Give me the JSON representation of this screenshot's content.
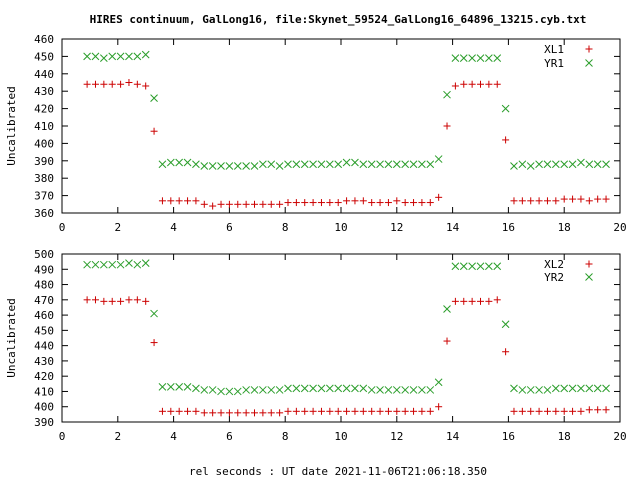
{
  "title": "HIRES continuum, GalLong16, file:Skynet_59524_GalLong16_64896_13215.cyb.txt",
  "xlabel": "rel seconds : UT date 2021-11-06T21:06:18.350",
  "colors": {
    "xl": "#cc0000",
    "yr": "#2a9d2a",
    "axis": "#000000"
  },
  "chart_data": [
    {
      "type": "scatter",
      "ylabel": "Uncalibrated",
      "xlim": [
        0,
        20
      ],
      "ylim": [
        360,
        460
      ],
      "xticks": [
        0,
        2,
        4,
        6,
        8,
        10,
        12,
        14,
        16,
        18,
        20
      ],
      "yticks": [
        360,
        370,
        380,
        390,
        400,
        410,
        420,
        430,
        440,
        450,
        460
      ],
      "legend_position": "top-right",
      "series": [
        {
          "name": "XL1",
          "marker": "plus",
          "color_key": "xl",
          "x": [
            0.9,
            1.2,
            1.5,
            1.8,
            2.1,
            2.4,
            2.7,
            3.0,
            3.3,
            3.6,
            3.9,
            4.2,
            4.5,
            4.8,
            5.1,
            5.4,
            5.7,
            6.0,
            6.3,
            6.6,
            6.9,
            7.2,
            7.5,
            7.8,
            8.1,
            8.4,
            8.7,
            9.0,
            9.3,
            9.6,
            9.9,
            10.2,
            10.5,
            10.8,
            11.1,
            11.4,
            11.7,
            12.0,
            12.3,
            12.6,
            12.9,
            13.2,
            13.5,
            13.8,
            14.1,
            14.4,
            14.7,
            15.0,
            15.3,
            15.6,
            15.9,
            16.2,
            16.5,
            16.8,
            17.1,
            17.4,
            17.7,
            18.0,
            18.3,
            18.6,
            18.9,
            19.2,
            19.5
          ],
          "y": [
            434,
            434,
            434,
            434,
            434,
            435,
            434,
            433,
            407,
            367,
            367,
            367,
            367,
            367,
            365,
            364,
            365,
            365,
            365,
            365,
            365,
            365,
            365,
            365,
            366,
            366,
            366,
            366,
            366,
            366,
            366,
            367,
            367,
            367,
            366,
            366,
            366,
            367,
            366,
            366,
            366,
            366,
            369,
            410,
            433,
            434,
            434,
            434,
            434,
            434,
            402,
            367,
            367,
            367,
            367,
            367,
            367,
            368,
            368,
            368,
            367,
            368,
            368
          ]
        },
        {
          "name": "YR1",
          "marker": "cross",
          "color_key": "yr",
          "x": [
            0.9,
            1.2,
            1.5,
            1.8,
            2.1,
            2.4,
            2.7,
            3.0,
            3.3,
            3.6,
            3.9,
            4.2,
            4.5,
            4.8,
            5.1,
            5.4,
            5.7,
            6.0,
            6.3,
            6.6,
            6.9,
            7.2,
            7.5,
            7.8,
            8.1,
            8.4,
            8.7,
            9.0,
            9.3,
            9.6,
            9.9,
            10.2,
            10.5,
            10.8,
            11.1,
            11.4,
            11.7,
            12.0,
            12.3,
            12.6,
            12.9,
            13.2,
            13.5,
            13.8,
            14.1,
            14.4,
            14.7,
            15.0,
            15.3,
            15.6,
            15.9,
            16.2,
            16.5,
            16.8,
            17.1,
            17.4,
            17.7,
            18.0,
            18.3,
            18.6,
            18.9,
            19.2,
            19.5
          ],
          "y": [
            450,
            450,
            449,
            450,
            450,
            450,
            450,
            451,
            426,
            388,
            389,
            389,
            389,
            388,
            387,
            387,
            387,
            387,
            387,
            387,
            387,
            388,
            388,
            387,
            388,
            388,
            388,
            388,
            388,
            388,
            388,
            389,
            389,
            388,
            388,
            388,
            388,
            388,
            388,
            388,
            388,
            388,
            391,
            428,
            449,
            449,
            449,
            449,
            449,
            449,
            420,
            387,
            388,
            387,
            388,
            388,
            388,
            388,
            388,
            389,
            388,
            388,
            388
          ]
        }
      ]
    },
    {
      "type": "scatter",
      "ylabel": "Uncalibrated",
      "xlim": [
        0,
        20
      ],
      "ylim": [
        390,
        500
      ],
      "xticks": [
        0,
        2,
        4,
        6,
        8,
        10,
        12,
        14,
        16,
        18,
        20
      ],
      "yticks": [
        390,
        400,
        410,
        420,
        430,
        440,
        450,
        460,
        470,
        480,
        490,
        500
      ],
      "legend_position": "top-right",
      "series": [
        {
          "name": "XL2",
          "marker": "plus",
          "color_key": "xl",
          "x": [
            0.9,
            1.2,
            1.5,
            1.8,
            2.1,
            2.4,
            2.7,
            3.0,
            3.3,
            3.6,
            3.9,
            4.2,
            4.5,
            4.8,
            5.1,
            5.4,
            5.7,
            6.0,
            6.3,
            6.6,
            6.9,
            7.2,
            7.5,
            7.8,
            8.1,
            8.4,
            8.7,
            9.0,
            9.3,
            9.6,
            9.9,
            10.2,
            10.5,
            10.8,
            11.1,
            11.4,
            11.7,
            12.0,
            12.3,
            12.6,
            12.9,
            13.2,
            13.5,
            13.8,
            14.1,
            14.4,
            14.7,
            15.0,
            15.3,
            15.6,
            15.9,
            16.2,
            16.5,
            16.8,
            17.1,
            17.4,
            17.7,
            18.0,
            18.3,
            18.6,
            18.9,
            19.2,
            19.5
          ],
          "y": [
            470,
            470,
            469,
            469,
            469,
            470,
            470,
            469,
            442,
            397,
            397,
            397,
            397,
            397,
            396,
            396,
            396,
            396,
            396,
            396,
            396,
            396,
            396,
            396,
            397,
            397,
            397,
            397,
            397,
            397,
            397,
            397,
            397,
            397,
            397,
            397,
            397,
            397,
            397,
            397,
            397,
            397,
            400,
            443,
            469,
            469,
            469,
            469,
            469,
            470,
            436,
            397,
            397,
            397,
            397,
            397,
            397,
            397,
            397,
            397,
            398,
            398,
            398
          ]
        },
        {
          "name": "YR2",
          "marker": "cross",
          "color_key": "yr",
          "x": [
            0.9,
            1.2,
            1.5,
            1.8,
            2.1,
            2.4,
            2.7,
            3.0,
            3.3,
            3.6,
            3.9,
            4.2,
            4.5,
            4.8,
            5.1,
            5.4,
            5.7,
            6.0,
            6.3,
            6.6,
            6.9,
            7.2,
            7.5,
            7.8,
            8.1,
            8.4,
            8.7,
            9.0,
            9.3,
            9.6,
            9.9,
            10.2,
            10.5,
            10.8,
            11.1,
            11.4,
            11.7,
            12.0,
            12.3,
            12.6,
            12.9,
            13.2,
            13.5,
            13.8,
            14.1,
            14.4,
            14.7,
            15.0,
            15.3,
            15.6,
            15.9,
            16.2,
            16.5,
            16.8,
            17.1,
            17.4,
            17.7,
            18.0,
            18.3,
            18.6,
            18.9,
            19.2,
            19.5
          ],
          "y": [
            493,
            493,
            493,
            493,
            493,
            494,
            493,
            494,
            461,
            413,
            413,
            413,
            413,
            412,
            411,
            411,
            410,
            410,
            410,
            411,
            411,
            411,
            411,
            411,
            412,
            412,
            412,
            412,
            412,
            412,
            412,
            412,
            412,
            412,
            411,
            411,
            411,
            411,
            411,
            411,
            411,
            411,
            416,
            464,
            492,
            492,
            492,
            492,
            492,
            492,
            454,
            412,
            411,
            411,
            411,
            411,
            412,
            412,
            412,
            412,
            412,
            412,
            412
          ]
        }
      ]
    }
  ]
}
